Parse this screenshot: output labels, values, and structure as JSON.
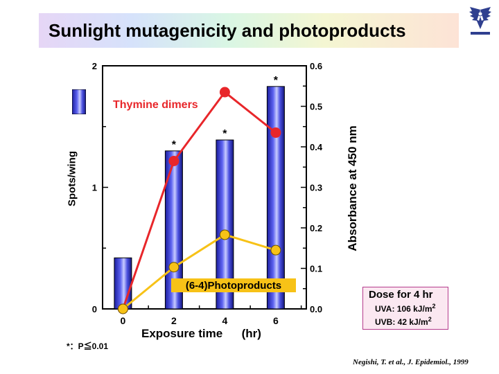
{
  "title": "Sunlight mutagenicity and photoproducts",
  "chart_data": {
    "type": "bar+line",
    "x_label": "Exposure time",
    "x_unit": "(hr)",
    "x_ticks": [
      "0",
      "2",
      "4",
      "6"
    ],
    "x": [
      0,
      2,
      4,
      6
    ],
    "left_axis": {
      "label": "Spots/wing",
      "range": [
        0,
        2
      ],
      "ticks": [
        "0",
        "1",
        "2"
      ]
    },
    "right_axis": {
      "label": "Absorbance at 450 nm",
      "range": [
        0,
        0.6
      ],
      "ticks": [
        "0.0",
        "0.1",
        "0.2",
        "0.3",
        "0.4",
        "0.5",
        "0.6"
      ]
    },
    "bars": {
      "axis": "left",
      "values": [
        0.42,
        1.3,
        1.39,
        1.83
      ],
      "significance_marks": [
        "",
        "*",
        "*",
        "*"
      ]
    },
    "series": [
      {
        "name": "Thymine dimers",
        "axis": "right",
        "color": "#e8262a",
        "values": [
          0.0,
          0.365,
          0.535,
          0.435
        ]
      },
      {
        "name": "(6-4)Photoproducts",
        "axis": "right",
        "color": "#f7c217",
        "values": [
          0.0,
          0.103,
          0.183,
          0.145
        ]
      }
    ],
    "grid": false
  },
  "footnote": "*：P≦0.01",
  "dose": {
    "title": "Dose for 4 hr",
    "uva": "UVA: 106 kJ/m",
    "uvb": "UVB: 42 kJ/m",
    "exponent": "2"
  },
  "citation": "Negishi, T. et al., J. Epidemiol., 1999",
  "colors": {
    "bar": "#3a3fd6",
    "bar_highlight": "#c7cbff",
    "thymine": "#e8262a",
    "photoproducts": "#f7c217"
  },
  "logo": {
    "icon": "university-logo-icon"
  }
}
